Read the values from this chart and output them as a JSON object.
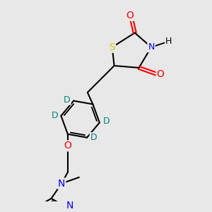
{
  "background_color": "#e8e8e8",
  "figsize": [
    3.0,
    3.0
  ],
  "dpi": 100,
  "atom_colors": {
    "C": "#000000",
    "N": "#0000ff",
    "O": "#ff0000",
    "S": "#cccc00",
    "D": "#008080",
    "H": "#000000"
  },
  "bond_color": "#000000",
  "bond_lw": 1.5,
  "font_size": 9
}
